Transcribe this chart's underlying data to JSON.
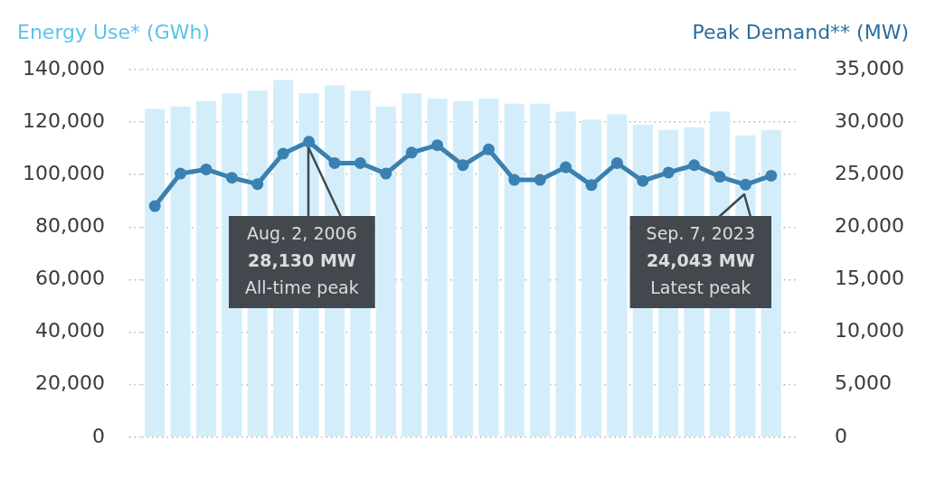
{
  "chart_data": {
    "type": "bar",
    "ylabel": "Energy Use* (GWh)",
    "y2label": "Peak Demand** (MW)",
    "categories": [
      null,
      null,
      null,
      null,
      null,
      null,
      null,
      null,
      null,
      null,
      null,
      null,
      null,
      null,
      null,
      null,
      null,
      null,
      null,
      null,
      null,
      null,
      null,
      null,
      null
    ],
    "series": [
      {
        "color": "#d3eefa",
        "values": [
          125000,
          126000,
          128000,
          131000,
          132000,
          136000,
          131000,
          134000,
          132000,
          126000,
          131000,
          129000,
          128000,
          129000,
          127000,
          127000,
          124000,
          121000,
          123000,
          119000,
          117000,
          118000,
          124000,
          115000,
          117000
        ]
      },
      {
        "type": "line",
        "axis": "y2",
        "color": "#3b80b0",
        "values": [
          22000,
          25100,
          25500,
          24700,
          24100,
          27000,
          28130,
          26100,
          26100,
          25100,
          27100,
          27800,
          25900,
          27400,
          24500,
          24500,
          25700,
          24000,
          26100,
          24400,
          25200,
          25900,
          24800,
          24043,
          24900
        ]
      }
    ],
    "ylim": [
      0,
      140000
    ],
    "yticks": [
      {
        "value": 0,
        "label": "0"
      },
      {
        "value": 20000,
        "label": "20,000"
      },
      {
        "value": 40000,
        "label": "40,000"
      },
      {
        "value": 60000,
        "label": "60,000"
      },
      {
        "value": 80000,
        "label": "80,000"
      },
      {
        "value": 100000,
        "label": "100,000"
      },
      {
        "value": 120000,
        "label": "120,000"
      },
      {
        "value": 140000,
        "label": "140,000"
      }
    ],
    "y2lim": [
      0,
      35000
    ],
    "y2ticks": [
      {
        "value": 0,
        "label": "0"
      },
      {
        "value": 5000,
        "label": "5,000"
      },
      {
        "value": 10000,
        "label": "10,000"
      },
      {
        "value": 15000,
        "label": "15,000"
      },
      {
        "value": 20000,
        "label": "20,000"
      },
      {
        "value": 25000,
        "label": "25,000"
      },
      {
        "value": 30000,
        "label": "30,000"
      },
      {
        "value": 35000,
        "label": "35,000"
      }
    ],
    "grid": "y",
    "marker": "circle",
    "annotations": [
      "Aug. 2, 2006\n28,130 MW\nAll-time peak",
      "Sep. 7, 2023\n24,043 MW\nLatest peak"
    ]
  }
}
